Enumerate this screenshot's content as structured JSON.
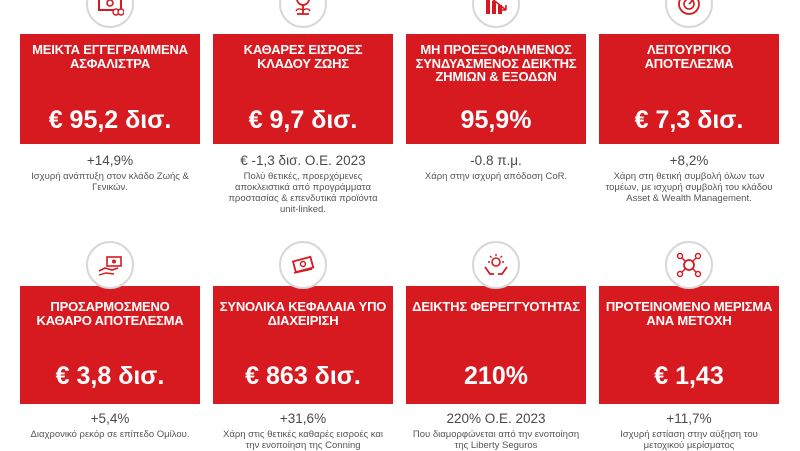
{
  "cards": [
    {
      "title": "ΜΕΙΚΤΑ ΕΓΓΕΓΡΑΜΜΕΝΑ ΑΣΦΑΛΙΣΤΡΑ",
      "value": "€ 95,2 δισ.",
      "stat": "+14,9%",
      "note": "Ισχυρή ανάπτυξη στον κλάδο Ζωής & Γενικών.",
      "icon": "money-icon"
    },
    {
      "title": "ΚΑΘΑΡΕΣ ΕΙΣΡΟΕΣ ΚΛΑΔΟΥ ΖΩΗΣ",
      "value": "€ 9,7 δισ.",
      "stat": "€ -1,3 δισ. Ο.Ε. 2023",
      "note": "Πολύ θετικές, προερχόμενες αποκλειστικά από προγράμματα προστασίας & επενδυτικά προϊόντα unit-linked.",
      "icon": "plant-coin-icon"
    },
    {
      "title": "ΜΗ ΠΡΟΕΞΟΦΛΗΜΕΝΟΣ ΣΥΝΔΥΑΣΜΕΝΟΣ ΔΕΙΚΤΗΣ ΖΗΜΙΩΝ & ΕΞΟΔΩΝ",
      "value": "95,9%",
      "stat": "-0.8 π.μ.",
      "note": "Χάρη στην ισχυρή απόδοση CoR.",
      "icon": "bar-chart-down-icon"
    },
    {
      "title": "ΛΕΙΤΟΥΡΓΙΚΟ ΑΠΟΤΕΛΕΣΜΑ",
      "value": "€ 7,3 δισ.",
      "stat": "+8,2%",
      "note": "Χάρη στη θετική συμβολή όλων των τομέων, με ισχυρή συμβολή του κλάδου Asset & Wealth Management.",
      "icon": "target-coin-icon"
    },
    {
      "title": "ΠΡΟΣΑΡΜΟΣΜΕΝΟ ΚΑΘΑΡΟ ΑΠΟΤΕΛΕΣΜΑ",
      "value": "€ 3,8 δισ.",
      "stat": "+5,4%",
      "note": "Διαχρονικό ρεκόρ σε επίπεδο Ομίλου.",
      "icon": "hand-cash-icon"
    },
    {
      "title": "ΣΥΝΟΛΙΚΑ ΚΕΦΑΛΑΙΑ ΥΠΟ ΔΙΑΧΕΙΡΙΣΗ",
      "value": "€ 863 δισ.",
      "stat": "+31,6%",
      "note": "Χάρη στις θετικές καθαρές εισροές και την ενοποίηση της Conning",
      "icon": "cash-stack-icon"
    },
    {
      "title": "ΔΕΙΚΤΗΣ ΦΕΡΕΓΓΥΟΤΗΤΑΣ",
      "value": "210%",
      "stat": "220% Ο.Ε. 2023",
      "note": "Που διαμορφώνεται από την ενοποίηση της Liberty Seguros",
      "icon": "hands-shield-icon"
    },
    {
      "title": "ΠΡΟΤΕΙΝΟΜΕΝΟ ΜΕΡΙΣΜΑ ΑΝΑ ΜΕΤΟΧΗ",
      "value": "€ 1,43",
      "stat": "+11,7%",
      "note": "Ισχυρή εστίαση στην αύξηση του μετοχικού μερίσματος",
      "icon": "coin-network-icon"
    }
  ],
  "colors": {
    "accent": "#d71920",
    "text": "#4a4a4a"
  }
}
